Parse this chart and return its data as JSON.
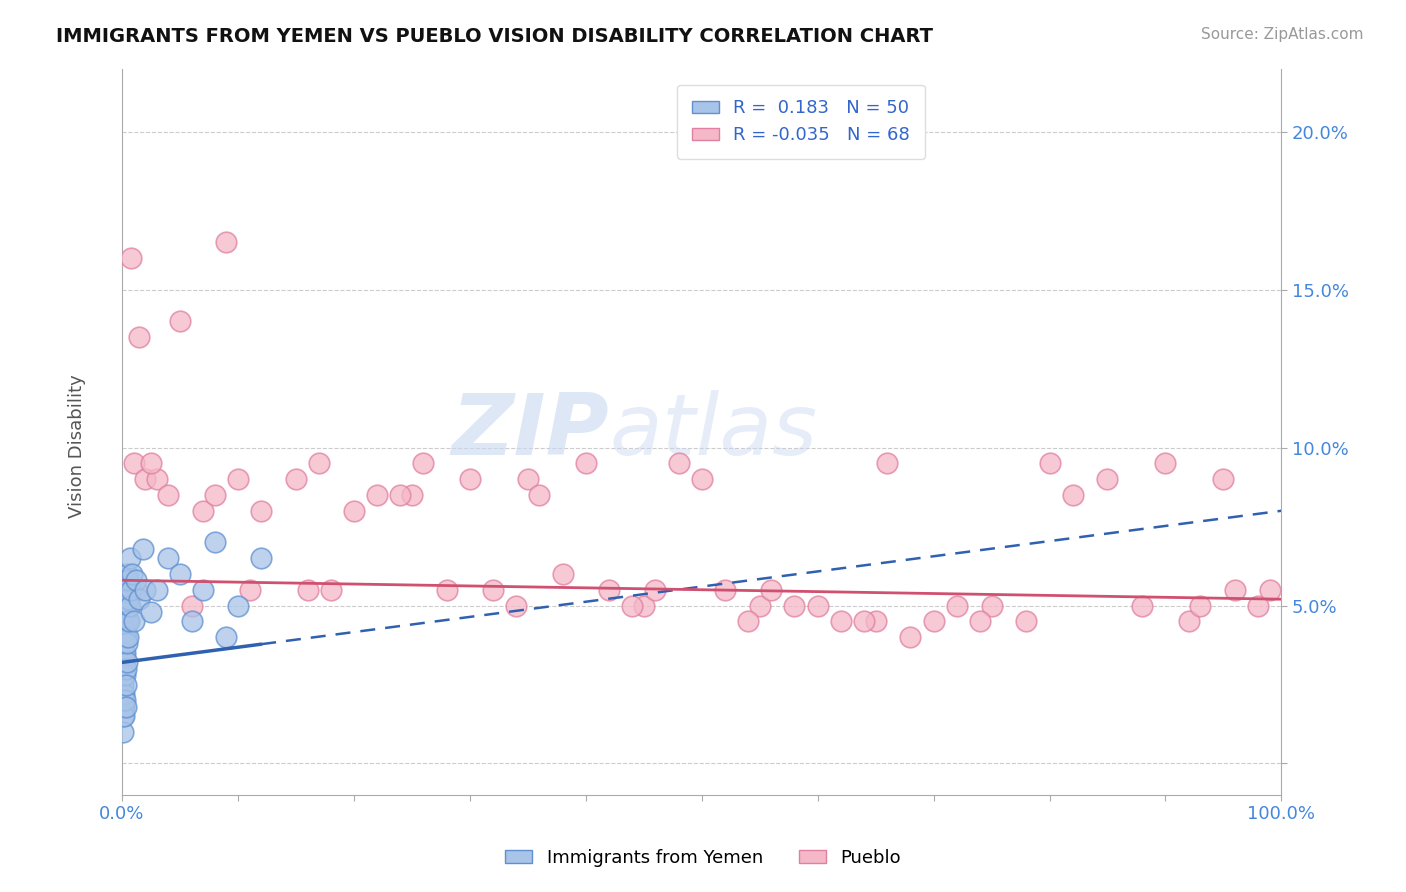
{
  "title": "IMMIGRANTS FROM YEMEN VS PUEBLO VISION DISABILITY CORRELATION CHART",
  "source_text": "Source: ZipAtlas.com",
  "ylabel": "Vision Disability",
  "xlim": [
    0,
    100
  ],
  "ylim": [
    -1,
    22
  ],
  "legend_r_blue": " 0.183",
  "legend_n_blue": "50",
  "legend_r_pink": "-0.035",
  "legend_n_pink": "68",
  "blue_color": "#A8C4E8",
  "pink_color": "#F5B8C8",
  "blue_edge": "#6090D0",
  "pink_edge": "#E080A0",
  "blue_line_color": "#3060B0",
  "pink_line_color": "#D05070",
  "watermark_zip": "ZIP",
  "watermark_atlas": "atlas",
  "blue_scatter_x": [
    0.05,
    0.08,
    0.1,
    0.1,
    0.12,
    0.12,
    0.15,
    0.15,
    0.18,
    0.18,
    0.2,
    0.2,
    0.22,
    0.22,
    0.25,
    0.25,
    0.28,
    0.3,
    0.3,
    0.32,
    0.35,
    0.35,
    0.38,
    0.4,
    0.4,
    0.42,
    0.45,
    0.48,
    0.5,
    0.55,
    0.6,
    0.65,
    0.7,
    0.8,
    0.9,
    1.0,
    1.2,
    1.5,
    1.8,
    2.0,
    2.5,
    3.0,
    4.0,
    5.0,
    6.0,
    7.0,
    8.0,
    9.0,
    10.0,
    12.0
  ],
  "blue_scatter_y": [
    1.5,
    2.0,
    1.0,
    3.0,
    2.5,
    4.0,
    1.8,
    3.5,
    2.2,
    4.5,
    1.5,
    3.8,
    2.8,
    5.0,
    2.0,
    4.2,
    3.5,
    1.8,
    4.8,
    3.0,
    2.5,
    5.5,
    4.0,
    3.2,
    6.0,
    4.5,
    3.8,
    5.2,
    4.0,
    5.8,
    4.5,
    5.0,
    6.5,
    5.5,
    6.0,
    4.5,
    5.8,
    5.2,
    6.8,
    5.5,
    4.8,
    5.5,
    6.5,
    6.0,
    4.5,
    5.5,
    7.0,
    4.0,
    5.0,
    6.5
  ],
  "pink_scatter_x": [
    0.3,
    0.5,
    0.8,
    1.0,
    1.5,
    2.0,
    3.0,
    4.0,
    5.0,
    7.0,
    8.0,
    9.0,
    10.0,
    12.0,
    15.0,
    17.0,
    18.0,
    20.0,
    22.0,
    25.0,
    26.0,
    28.0,
    30.0,
    32.0,
    35.0,
    36.0,
    38.0,
    40.0,
    42.0,
    45.0,
    46.0,
    48.0,
    50.0,
    52.0,
    55.0,
    56.0,
    58.0,
    60.0,
    62.0,
    65.0,
    66.0,
    68.0,
    70.0,
    72.0,
    75.0,
    78.0,
    80.0,
    82.0,
    85.0,
    88.0,
    90.0,
    92.0,
    93.0,
    95.0,
    96.0,
    98.0,
    99.0,
    1.2,
    2.5,
    6.0,
    11.0,
    16.0,
    24.0,
    34.0,
    44.0,
    54.0,
    64.0,
    74.0
  ],
  "pink_scatter_y": [
    5.5,
    5.0,
    16.0,
    9.5,
    13.5,
    9.0,
    9.0,
    8.5,
    14.0,
    8.0,
    8.5,
    16.5,
    9.0,
    8.0,
    9.0,
    9.5,
    5.5,
    8.0,
    8.5,
    8.5,
    9.5,
    5.5,
    9.0,
    5.5,
    9.0,
    8.5,
    6.0,
    9.5,
    5.5,
    5.0,
    5.5,
    9.5,
    9.0,
    5.5,
    5.0,
    5.5,
    5.0,
    5.0,
    4.5,
    4.5,
    9.5,
    4.0,
    4.5,
    5.0,
    5.0,
    4.5,
    9.5,
    8.5,
    9.0,
    5.0,
    9.5,
    4.5,
    5.0,
    9.0,
    5.5,
    5.0,
    5.5,
    5.5,
    9.5,
    5.0,
    5.5,
    5.5,
    8.5,
    5.0,
    5.0,
    4.5,
    4.5,
    4.5
  ],
  "blue_trend_x0": 0.0,
  "blue_trend_y0": 3.2,
  "blue_trend_x1": 100.0,
  "blue_trend_y1": 8.0,
  "blue_solid_end": 12.0,
  "pink_trend_x0": 0.0,
  "pink_trend_y0": 5.8,
  "pink_trend_x1": 100.0,
  "pink_trend_y1": 5.2
}
